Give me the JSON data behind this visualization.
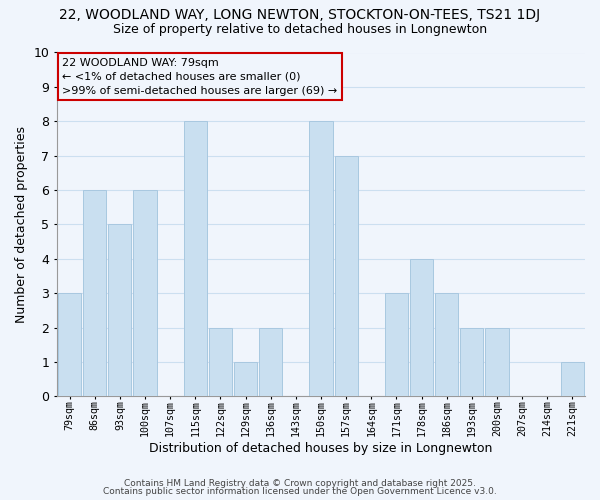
{
  "title": "22, WOODLAND WAY, LONG NEWTON, STOCKTON-ON-TEES, TS21 1DJ",
  "subtitle": "Size of property relative to detached houses in Longnewton",
  "xlabel": "Distribution of detached houses by size in Longnewton",
  "ylabel": "Number of detached properties",
  "bar_color": "#c9dff0",
  "bar_edge_color": "#a8c8e0",
  "categories": [
    "79sqm",
    "86sqm",
    "93sqm",
    "100sqm",
    "107sqm",
    "115sqm",
    "122sqm",
    "129sqm",
    "136sqm",
    "143sqm",
    "150sqm",
    "157sqm",
    "164sqm",
    "171sqm",
    "178sqm",
    "186sqm",
    "193sqm",
    "200sqm",
    "207sqm",
    "214sqm",
    "221sqm"
  ],
  "values": [
    3,
    6,
    5,
    6,
    0,
    8,
    2,
    1,
    2,
    0,
    8,
    7,
    0,
    3,
    4,
    3,
    2,
    2,
    0,
    0,
    1
  ],
  "ylim": [
    0,
    10
  ],
  "yticks": [
    0,
    1,
    2,
    3,
    4,
    5,
    6,
    7,
    8,
    9,
    10
  ],
  "annotation_title": "22 WOODLAND WAY: 79sqm",
  "annotation_line1": "← <1% of detached houses are smaller (0)",
  "annotation_line2": ">99% of semi-detached houses are larger (69) →",
  "annotation_box_edge_color": "#cc0000",
  "footer_line1": "Contains HM Land Registry data © Crown copyright and database right 2025.",
  "footer_line2": "Contains public sector information licensed under the Open Government Licence v3.0.",
  "grid_color": "#ccdff0",
  "background_color": "#f0f5fc"
}
